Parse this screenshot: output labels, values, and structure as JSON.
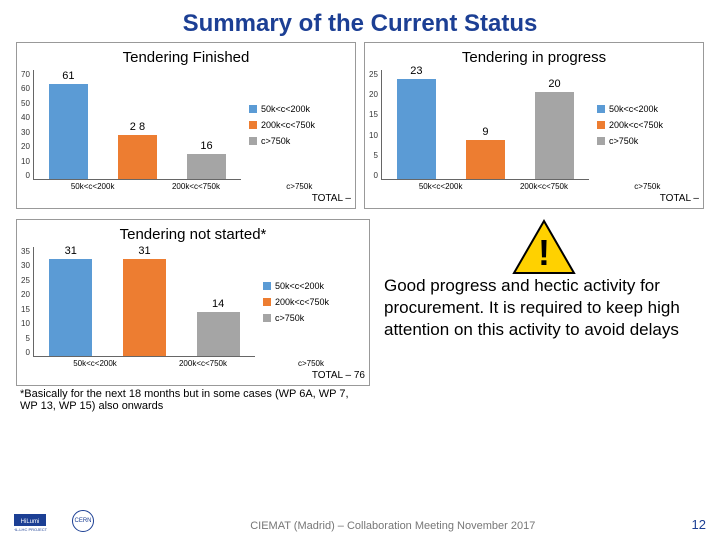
{
  "title": "Summary of the Current Status",
  "title_color": "#1c3f94",
  "series_colors": {
    "s1": "#5b9bd5",
    "s2": "#ed7d31",
    "s3": "#a5a5a5"
  },
  "series_labels": {
    "s1": "50k<c<200k",
    "s2": "200k<c<750k",
    "s3": "c>750k"
  },
  "x_labels": [
    "50k<c<200k",
    "200k<c<750k",
    "c>750k"
  ],
  "charts": {
    "finished": {
      "title": "Tendering Finished",
      "ymax": 70,
      "yticks": [
        70,
        60,
        50,
        40,
        30,
        20,
        10,
        0
      ],
      "values": [
        61,
        28,
        16
      ],
      "value_labels": [
        "61",
        "2\n8",
        "16"
      ],
      "total": "TOTAL –"
    },
    "progress": {
      "title": "Tendering in progress",
      "ymax": 25,
      "yticks": [
        25,
        20,
        15,
        10,
        5,
        0
      ],
      "values": [
        23,
        9,
        20
      ],
      "value_labels": [
        "23",
        "9",
        "20"
      ],
      "total": "TOTAL –"
    },
    "notstarted": {
      "title": "Tendering not started*",
      "ymax": 35,
      "yticks": [
        35,
        30,
        25,
        20,
        15,
        10,
        5,
        0
      ],
      "values": [
        31,
        31,
        14
      ],
      "value_labels": [
        "31",
        "31",
        "14"
      ],
      "total": "TOTAL – 76"
    }
  },
  "footnote": "*Basically for the next 18 months but in some cases (WP 6A, WP 7, WP 13, WP 15) also onwards",
  "body_text": "Good progress and hectic activity for procurement. It is required to keep high attention on this activity to avoid delays",
  "warning": {
    "fill": "#ffd100",
    "stroke": "#000000",
    "bang": "!"
  },
  "footer_text": "CIEMAT (Madrid) – Collaboration Meeting November 2017",
  "page_number": "12",
  "logo_text": "HL-LHC PROJECT",
  "cern_text": "CERN"
}
